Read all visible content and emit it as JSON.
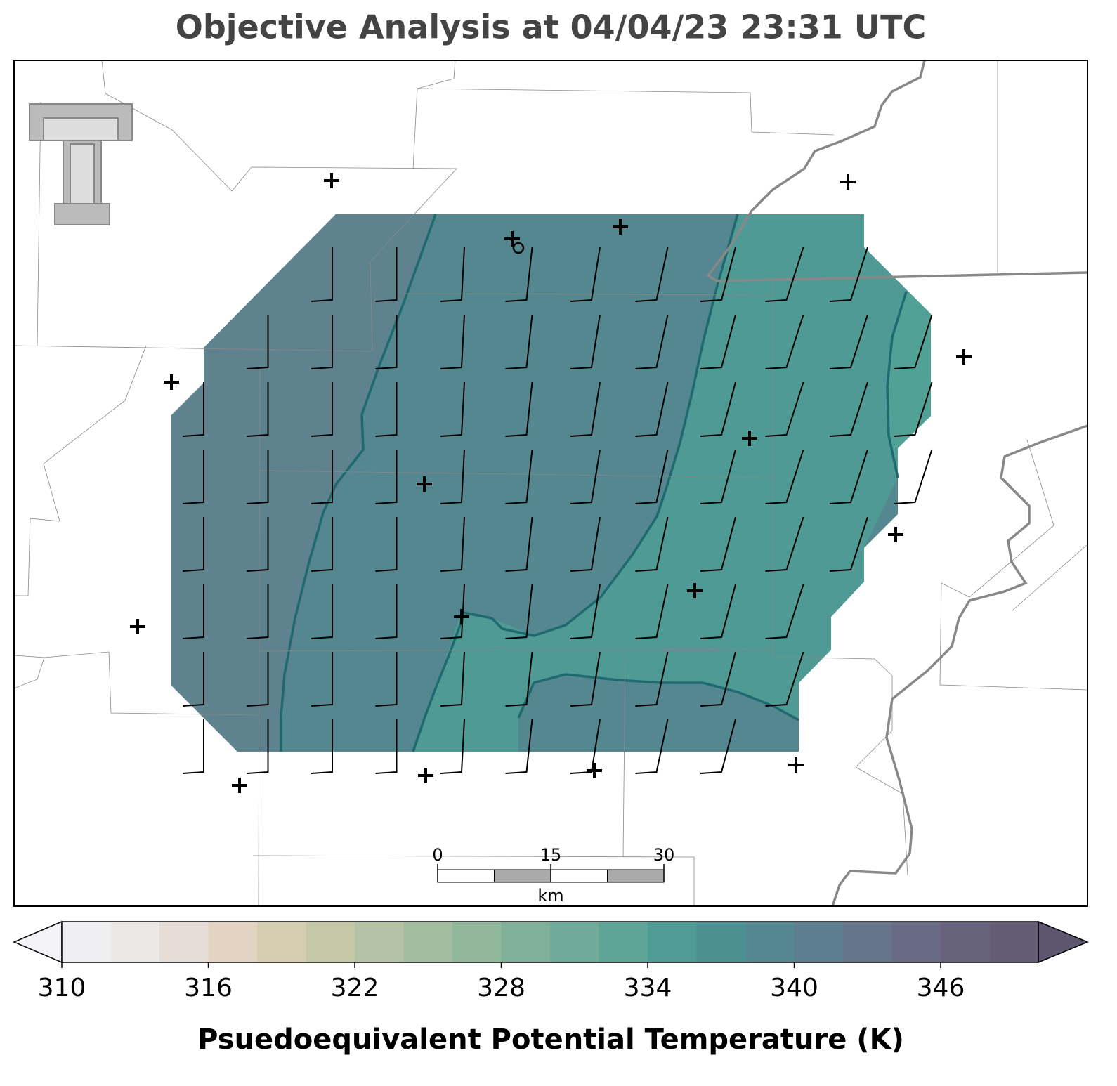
{
  "title": "Objective Analysis at 04/04/23 23:31 UTC",
  "scale_bar": {
    "ticks": [
      0,
      15,
      30
    ],
    "unit": "km"
  },
  "colorbar": {
    "label": "Psuedoequivalent Potential Temperature (K)",
    "levels": [
      310,
      312,
      314,
      316,
      318,
      320,
      322,
      324,
      326,
      328,
      330,
      332,
      334,
      336,
      338,
      340,
      342,
      344,
      346,
      348,
      350
    ],
    "colors": [
      "#efeff2",
      "#ebe8e8",
      "#e5ddd6",
      "#e3d3c2",
      "#d5cdb0",
      "#c5c8a6",
      "#b4c2a5",
      "#a2bc9f",
      "#91b89a",
      "#80b09a",
      "#6fab98",
      "#5ea597",
      "#4f9c95",
      "#4c9091",
      "#54878f",
      "#5d7e8e",
      "#66758a",
      "#686b83",
      "#67637c",
      "#645c75"
    ],
    "under_color": "#f3f2f7",
    "over_color": "#5d5670",
    "ticks": [
      310,
      316,
      322,
      328,
      334,
      340,
      346
    ]
  }
}
